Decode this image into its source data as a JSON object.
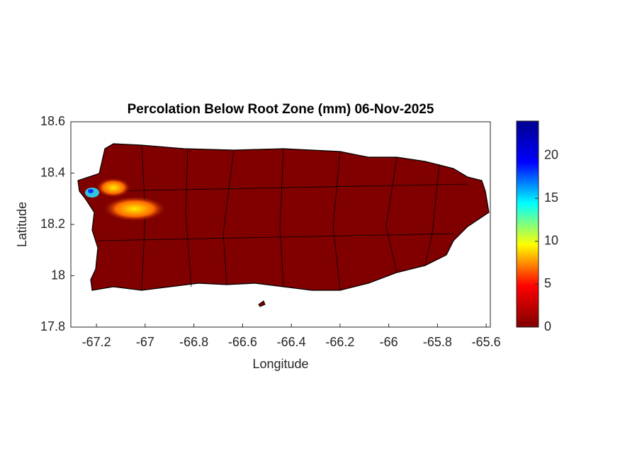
{
  "chart_data": {
    "type": "map",
    "title": "Percolation Below Root Zone (mm) 06-Nov-2025",
    "x_label": "Longitude",
    "y_label": "Latitude",
    "xlim": [
      -67.305,
      -65.583
    ],
    "xticks": [
      -67.2,
      -67,
      -66.8,
      -66.6,
      -66.4,
      -66.2,
      -66,
      -65.8,
      -65.6
    ],
    "ylim": [
      17.8,
      18.6
    ],
    "yticks": [
      17.8,
      18,
      18.2,
      18.4,
      18.6
    ],
    "colorbar": {
      "colormap": "jet",
      "clim": [
        0,
        24
      ],
      "ticks": [
        0,
        5,
        10,
        15,
        20
      ]
    }
  }
}
